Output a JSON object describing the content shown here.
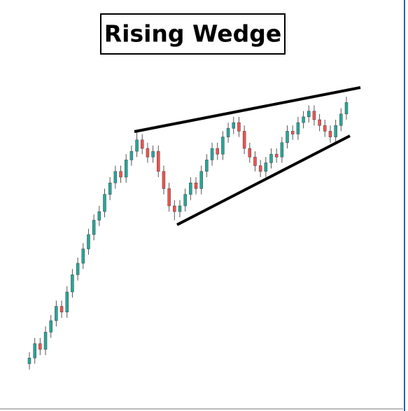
{
  "chart_data": {
    "type": "candlestick",
    "title": "Rising Wedge",
    "up_color": "#26a69a",
    "down_color": "#ef5350",
    "ylim": [
      0,
      100
    ],
    "open": [
      5,
      7,
      12,
      10,
      16,
      20,
      25,
      23,
      30,
      36,
      40,
      45,
      50,
      55,
      58,
      64,
      68,
      72,
      70,
      76,
      79,
      83,
      80,
      77,
      79,
      72,
      66,
      60,
      58,
      60,
      64,
      68,
      66,
      72,
      76,
      80,
      78,
      84,
      87,
      89,
      86,
      80,
      77,
      74,
      72,
      75,
      78,
      77,
      82,
      86,
      85,
      89,
      91,
      93,
      90,
      88,
      86,
      84,
      88,
      92
    ],
    "high": [
      9,
      14,
      14,
      18,
      22,
      27,
      27,
      32,
      38,
      42,
      47,
      52,
      57,
      60,
      66,
      70,
      74,
      74,
      78,
      81,
      86,
      85,
      82,
      81,
      81,
      74,
      68,
      62,
      62,
      66,
      70,
      70,
      74,
      78,
      82,
      82,
      86,
      89,
      91,
      91,
      88,
      82,
      79,
      76,
      77,
      80,
      80,
      84,
      88,
      88,
      91,
      93,
      95,
      95,
      92,
      90,
      88,
      90,
      94,
      98
    ],
    "low": [
      3,
      5,
      8,
      8,
      14,
      18,
      21,
      21,
      28,
      34,
      38,
      43,
      48,
      53,
      56,
      62,
      66,
      68,
      68,
      74,
      77,
      78,
      75,
      75,
      70,
      64,
      58,
      55,
      56,
      58,
      62,
      64,
      64,
      70,
      74,
      76,
      76,
      82,
      85,
      84,
      78,
      75,
      72,
      70,
      70,
      73,
      75,
      75,
      80,
      83,
      83,
      87,
      89,
      88,
      86,
      84,
      82,
      82,
      86,
      90
    ],
    "close": [
      7,
      12,
      10,
      16,
      20,
      25,
      23,
      30,
      36,
      40,
      45,
      50,
      55,
      58,
      64,
      68,
      72,
      70,
      76,
      79,
      83,
      80,
      77,
      79,
      72,
      66,
      60,
      58,
      60,
      64,
      68,
      66,
      72,
      76,
      80,
      78,
      84,
      87,
      89,
      86,
      80,
      77,
      74,
      72,
      75,
      78,
      77,
      82,
      86,
      85,
      89,
      91,
      93,
      90,
      88,
      86,
      84,
      88,
      92,
      96
    ]
  }
}
